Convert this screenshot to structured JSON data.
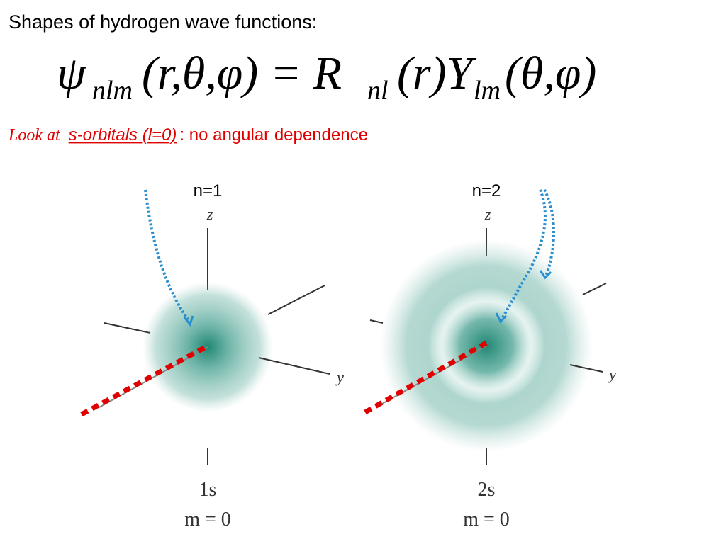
{
  "header": {
    "title": "Shapes of hydrogen wave functions:"
  },
  "equation": {
    "psi": "ψ",
    "psi_sub": "nlm",
    "lhs_args": "(r,θ,φ) = R",
    "r_sub": "nl",
    "mid": "(r)Y",
    "y_sub": "lm",
    "rhs_args": "(θ,φ)"
  },
  "note": {
    "lead": "Look at",
    "link": "s-orbitals (l=0)",
    "rest": ": no angular dependence"
  },
  "orbitals": [
    {
      "heading": "n=1",
      "z_label": "z",
      "y_label": "y",
      "name": "1s",
      "m": "m = 0"
    },
    {
      "heading": "n=2",
      "z_label": "z",
      "y_label": "y",
      "name": "2s",
      "m": "m = 0"
    }
  ]
}
